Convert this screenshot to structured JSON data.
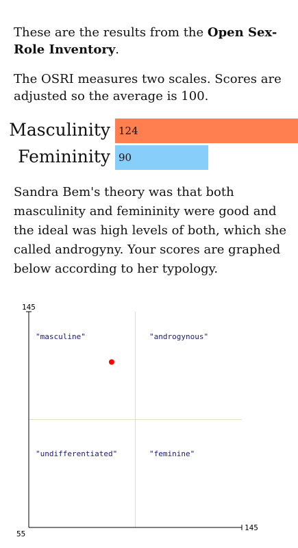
{
  "intro": {
    "before": "These are the results from the ",
    "bold": "Open Sex-Role Inventory",
    "after": "."
  },
  "explanation": "The OSRI measures two scales. Scores are adjusted so the average is 100.",
  "scores": [
    {
      "name": "Masculinity",
      "value": 124,
      "color": "#ff7f50"
    },
    {
      "name": "Femininity",
      "value": 90,
      "color": "#87cefa"
    }
  ],
  "theory": "Sandra Bem's theory was that both masculinity and femininity were good and the ideal was high levels of both, which she called androgyny. Your scores are graphed below according to her typology.",
  "plot": {
    "xlim": [
      55,
      145
    ],
    "ylim": [
      55,
      145
    ],
    "midpoint": 100,
    "point_color": "#ff0000",
    "quadrants": {
      "top_left": "\"masculine\"",
      "top_right": "\"androgynous\"",
      "bottom_left": "\"undifferentiated\"",
      "bottom_right": "\"feminine\""
    }
  }
}
